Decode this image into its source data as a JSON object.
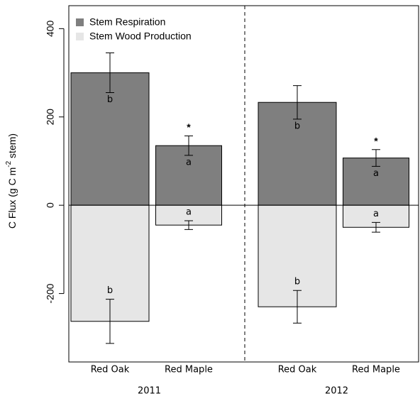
{
  "chart_data": {
    "type": "bar",
    "y_label": {
      "text": "C Flux (g C m",
      "superscript": "-2",
      "suffix": " stem)"
    },
    "categories": [
      "Red Oak",
      "Red Maple",
      "Red Oak",
      "Red Maple"
    ],
    "group_labels": [
      "2011",
      "2012"
    ],
    "series": [
      {
        "name": "Stem Respiration",
        "color": "#7f7f7f",
        "values": [
          300,
          135,
          233,
          107
        ],
        "errors": [
          45,
          22,
          38,
          19
        ],
        "letters": [
          "b",
          "a",
          "b",
          "a"
        ],
        "stars": [
          null,
          "*",
          null,
          "*"
        ]
      },
      {
        "name": "Stem Wood Production",
        "color": "#e6e6e6",
        "values": [
          -263,
          -45,
          -230,
          -50
        ],
        "errors": [
          50,
          10,
          37,
          11
        ],
        "letters": [
          "b",
          "a",
          "b",
          "a"
        ]
      }
    ],
    "ylim": [
      -355,
      452
    ],
    "yticks": [
      -200,
      0,
      200,
      400
    ],
    "legend": "top-left"
  }
}
